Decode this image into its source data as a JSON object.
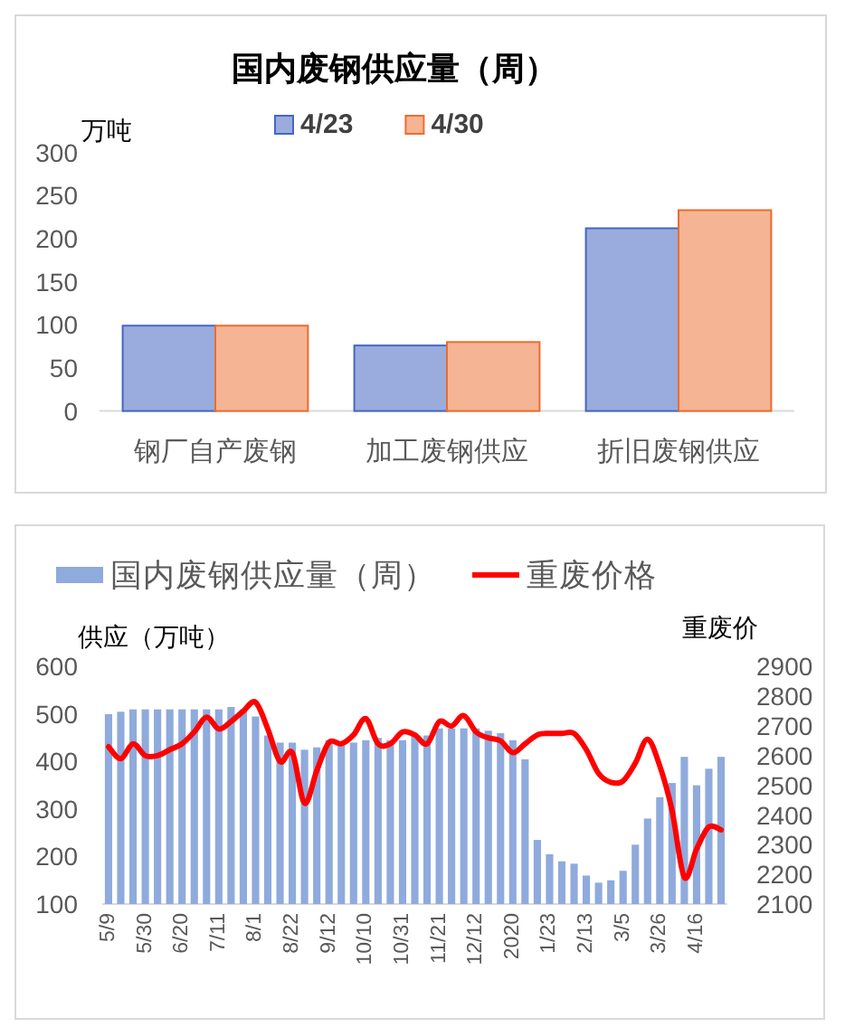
{
  "chart_data": [
    {
      "type": "bar",
      "title": "国内废钢供应量（周）",
      "ylabel": "万吨",
      "categories": [
        "钢厂自产废钢",
        "加工废钢供应",
        "折旧废钢供应"
      ],
      "series": [
        {
          "name": "4/23",
          "color": "#9aacde",
          "values": [
            99,
            76,
            212
          ]
        },
        {
          "name": "4/30",
          "color": "#f5b494",
          "values": [
            99,
            80,
            233
          ]
        }
      ],
      "ylim": [
        0,
        300
      ],
      "yticks": [
        0,
        50,
        100,
        150,
        200,
        250,
        300
      ],
      "legend": "top"
    },
    {
      "type": "bar",
      "ylabel": "供应（万吨）",
      "y2label": "重废价",
      "categories": [
        "5/9",
        null,
        null,
        "5/30",
        null,
        null,
        "6/20",
        null,
        null,
        "7/11",
        null,
        null,
        "8/1",
        null,
        null,
        "8/22",
        null,
        null,
        "9/12",
        null,
        null,
        "10/10",
        null,
        null,
        "10/31",
        null,
        null,
        "11/21",
        null,
        null,
        "12/12",
        null,
        null,
        "2020",
        null,
        null,
        "1/23",
        null,
        null,
        "2/13",
        null,
        null,
        "3/5",
        null,
        null,
        "3/26",
        null,
        null,
        "4/16",
        null,
        null
      ],
      "series": [
        {
          "name": "国内废钢供应量（周）",
          "color": "#8faadc",
          "values": [
            500,
            505,
            510,
            510,
            510,
            510,
            510,
            510,
            510,
            510,
            515,
            510,
            495,
            455,
            440,
            440,
            425,
            430,
            445,
            435,
            440,
            445,
            450,
            445,
            445,
            455,
            455,
            470,
            470,
            470,
            470,
            465,
            460,
            445,
            405,
            235,
            205,
            190,
            185,
            160,
            145,
            150,
            170,
            225,
            280,
            325,
            355,
            410,
            350,
            385,
            410
          ]
        },
        {
          "name": "重废价格",
          "type": "line",
          "axis": "y2",
          "color": "#ff0000",
          "values": [
            2630,
            2590,
            2640,
            2600,
            2600,
            2620,
            2640,
            2680,
            2730,
            2690,
            2715,
            2750,
            2780,
            2690,
            2580,
            2610,
            2440,
            2550,
            2645,
            2640,
            2670,
            2725,
            2640,
            2640,
            2680,
            2670,
            2640,
            2715,
            2700,
            2735,
            2680,
            2660,
            2650,
            2610,
            2640,
            2670,
            2675,
            2675,
            2675,
            2620,
            2540,
            2510,
            2515,
            2575,
            2655,
            2565,
            2415,
            2190,
            2285,
            2360,
            2350
          ]
        }
      ],
      "ylim": [
        100,
        600
      ],
      "yticks": [
        100,
        200,
        300,
        400,
        500,
        600
      ],
      "y2lim": [
        2100,
        2900
      ],
      "y2ticks": [
        2100,
        2200,
        2300,
        2400,
        2500,
        2600,
        2700,
        2800,
        2900
      ],
      "legend": "top"
    }
  ]
}
